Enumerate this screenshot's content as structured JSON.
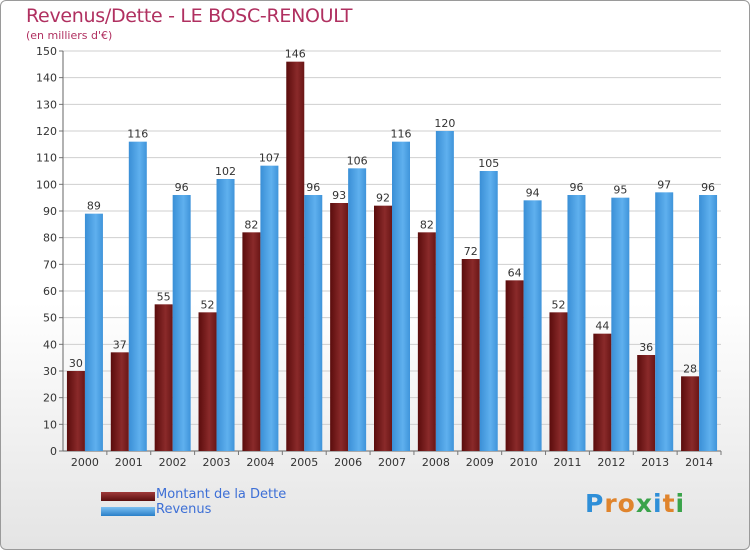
{
  "header": {
    "title": "Revenus/Dette - LE BOSC-RENOULT",
    "subtitle": "(en milliers d'€)"
  },
  "legend": {
    "debt_label": "Montant de la Dette",
    "revenue_label": "Revenus"
  },
  "logo": {
    "letters": [
      "P",
      "r",
      "o",
      "x",
      "i",
      "t",
      "i"
    ],
    "colors": [
      "#2f8fd8",
      "#e0842c",
      "#e0842c",
      "#3aa34a",
      "#2f8fd8",
      "#e0842c",
      "#3aa34a"
    ]
  },
  "colors": {
    "debt": "#7a1d1d",
    "revenue": "#4a9fe2",
    "title": "#b03060",
    "legend_text": "#3d6fd6"
  },
  "chart_data": {
    "type": "bar",
    "title": "Revenus/Dette - LE BOSC-RENOULT",
    "ylabel": "(en milliers d'€)",
    "xlabel": "",
    "ylim": [
      0,
      150
    ],
    "ytick_step": 10,
    "grid": true,
    "legend_position": "bottom-left",
    "categories": [
      "2000",
      "2001",
      "2002",
      "2003",
      "2004",
      "2005",
      "2006",
      "2007",
      "2008",
      "2009",
      "2010",
      "2011",
      "2012",
      "2013",
      "2014"
    ],
    "series": [
      {
        "name": "Montant de la Dette",
        "values": [
          30,
          37,
          55,
          52,
          82,
          146,
          93,
          92,
          82,
          72,
          64,
          52,
          44,
          36,
          28
        ]
      },
      {
        "name": "Revenus",
        "values": [
          89,
          116,
          96,
          102,
          107,
          96,
          106,
          116,
          120,
          105,
          94,
          96,
          95,
          97,
          96
        ]
      }
    ]
  }
}
